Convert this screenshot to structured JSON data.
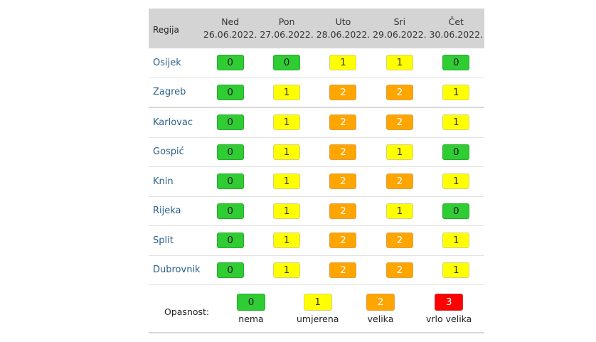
{
  "header": {
    "region_label": "Regija",
    "days": [
      {
        "name": "Ned",
        "date": "26.06.2022."
      },
      {
        "name": "Pon",
        "date": "27.06.2022."
      },
      {
        "name": "Uto",
        "date": "28.06.2022."
      },
      {
        "name": "Sri",
        "date": "29.06.2022."
      },
      {
        "name": "Čet",
        "date": "30.06.2022."
      }
    ]
  },
  "rows": [
    {
      "region": "Osijek",
      "values": [
        "0",
        "0",
        "1",
        "1",
        "0"
      ]
    },
    {
      "region": "Zagreb",
      "values": [
        "0",
        "1",
        "2",
        "2",
        "1"
      ]
    },
    {
      "region": "Karlovac",
      "values": [
        "0",
        "1",
        "2",
        "2",
        "1"
      ]
    },
    {
      "region": "Gospić",
      "values": [
        "0",
        "1",
        "2",
        "1",
        "0"
      ]
    },
    {
      "region": "Knin",
      "values": [
        "0",
        "1",
        "2",
        "2",
        "1"
      ]
    },
    {
      "region": "Rijeka",
      "values": [
        "0",
        "1",
        "2",
        "1",
        "0"
      ]
    },
    {
      "region": "Split",
      "values": [
        "0",
        "1",
        "2",
        "2",
        "1"
      ]
    },
    {
      "region": "Dubrovnik",
      "values": [
        "0",
        "1",
        "2",
        "2",
        "1"
      ]
    }
  ],
  "legend": {
    "title": "Opasnost:",
    "items": [
      {
        "value": "0",
        "label": "nema"
      },
      {
        "value": "1",
        "label": "umjerena"
      },
      {
        "value": "2",
        "label": "velika"
      },
      {
        "value": "3",
        "label": "vrlo velika"
      }
    ]
  },
  "colors": {
    "level_0": "#2fcc33",
    "level_1": "#ffff00",
    "level_2": "#ffa500",
    "level_3": "#ff0000",
    "header_bg": "#d4d4d4",
    "region_link": "#2a5f8a"
  }
}
